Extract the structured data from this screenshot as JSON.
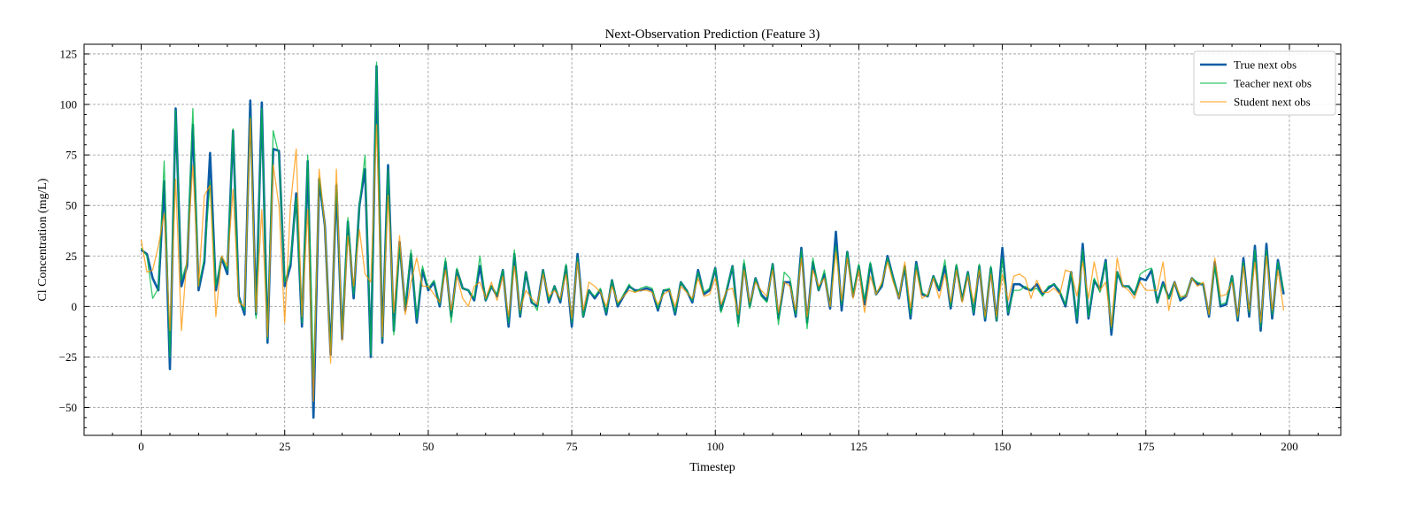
{
  "chart_data": {
    "type": "line",
    "title": "Next-Observation Prediction (Feature 3)",
    "xlabel": "Timestep",
    "ylabel": "Cl Concentration (mg/L)",
    "xlim": [
      -9.95,
      208.95
    ],
    "ylim": [
      -63.8,
      129.8
    ],
    "xticks": [
      0,
      25,
      50,
      75,
      100,
      125,
      150,
      175,
      200
    ],
    "yticks": [
      -50,
      -25,
      0,
      25,
      50,
      75,
      100,
      125
    ],
    "grid": true,
    "legend_position": "top-right",
    "x_start": 0,
    "x_step": 1,
    "series": [
      {
        "name": "True next obs",
        "color": "#0C5DA5",
        "values": [
          28,
          26,
          14,
          8,
          62,
          -31,
          98,
          10,
          20,
          90,
          8,
          22,
          76,
          8,
          24,
          16,
          87,
          5,
          -4,
          102,
          -4,
          101,
          -18,
          78,
          77,
          10,
          20,
          56,
          -10,
          72,
          -55,
          63,
          40,
          -24,
          60,
          -16,
          42,
          4,
          50,
          68,
          -25,
          119,
          -18,
          70,
          -12,
          32,
          -2,
          26,
          -8,
          18,
          8,
          12,
          0,
          22,
          -5,
          18,
          9,
          8,
          3,
          20,
          3,
          10,
          5,
          18,
          -10,
          26,
          -5,
          17,
          2,
          0,
          18,
          2,
          10,
          2,
          20,
          -10,
          26,
          -5,
          8,
          4,
          8,
          -4,
          13,
          0,
          5,
          10,
          8,
          8,
          9,
          8,
          -2,
          8,
          8,
          -4,
          12,
          8,
          2,
          18,
          6,
          8,
          19,
          -2,
          8,
          20,
          -8,
          21,
          0,
          14,
          6,
          3,
          21,
          -6,
          12,
          12,
          -5,
          29,
          -8,
          22,
          8,
          16,
          -1,
          37,
          -2,
          27,
          5,
          20,
          1,
          21,
          6,
          10,
          25,
          14,
          4,
          20,
          -6,
          22,
          6,
          5,
          15,
          8,
          20,
          -1,
          20,
          3,
          17,
          -4,
          20,
          -7,
          19,
          -7,
          29,
          -4,
          11,
          11,
          9,
          8,
          11,
          6,
          9,
          11,
          7,
          0,
          17,
          -8,
          31,
          -6,
          13,
          8,
          23,
          -14,
          17,
          10,
          10,
          6,
          14,
          13,
          18,
          2,
          12,
          4,
          12,
          3,
          5,
          14,
          11,
          11,
          -5,
          22,
          0,
          1,
          15,
          -7,
          24,
          -5,
          30,
          -12,
          31,
          -6,
          23,
          6
        ]
      },
      {
        "name": "Teacher next obs",
        "color": "#00B945",
        "values": [
          29,
          25,
          4,
          9,
          72,
          -25,
          97,
          13,
          22,
          98,
          10,
          24,
          62,
          10,
          25,
          18,
          88,
          4,
          -2,
          94,
          -6,
          98,
          -16,
          87,
          75,
          12,
          22,
          54,
          -8,
          75,
          -35,
          64,
          40,
          -22,
          61,
          -14,
          44,
          6,
          50,
          75,
          -24,
          121,
          -16,
          68,
          -14,
          30,
          0,
          28,
          -6,
          20,
          9,
          13,
          1,
          24,
          -8,
          19,
          9,
          8,
          4,
          25,
          3,
          10,
          6,
          18,
          -8,
          28,
          -4,
          17,
          3,
          -2,
          18,
          3,
          10,
          3,
          21,
          -8,
          24,
          -5,
          8,
          5,
          9,
          -3,
          13,
          1,
          6,
          11,
          7,
          9,
          10,
          9,
          -1,
          8,
          9,
          -3,
          12,
          8,
          3,
          17,
          7,
          9,
          19,
          -3,
          9,
          20,
          -10,
          23,
          -1,
          14,
          5,
          2,
          21,
          -9,
          17,
          14,
          -4,
          28,
          -11,
          24,
          8,
          18,
          0,
          30,
          1,
          27,
          6,
          21,
          3,
          22,
          6,
          11,
          24,
          14,
          5,
          20,
          -4,
          21,
          7,
          5,
          15,
          9,
          23,
          0,
          21,
          3,
          17,
          -3,
          21,
          -6,
          20,
          -7,
          24,
          -3,
          8,
          8,
          10,
          8,
          9,
          5,
          10,
          11,
          8,
          1,
          17,
          -6,
          28,
          -5,
          14,
          7,
          22,
          -11,
          17,
          10,
          10,
          6,
          16,
          18,
          19,
          2,
          11,
          4,
          12,
          4,
          6,
          14,
          12,
          11,
          -4,
          20,
          1,
          2,
          15,
          -6,
          22,
          -3,
          28,
          -10,
          28,
          -4,
          22,
          8
        ]
      },
      {
        "name": "Student next obs",
        "color": "#FF9500",
        "values": [
          33,
          17,
          18,
          30,
          46,
          -12,
          63,
          -12,
          25,
          70,
          10,
          55,
          60,
          -5,
          25,
          20,
          58,
          2,
          0,
          93,
          -3,
          48,
          -15,
          70,
          50,
          -8,
          50,
          78,
          -5,
          48,
          -47,
          68,
          40,
          -28,
          68,
          -17,
          35,
          10,
          38,
          16,
          12,
          90,
          -15,
          55,
          -3,
          35,
          -4,
          12,
          24,
          10,
          10,
          6,
          2,
          18,
          -2,
          15,
          4,
          0,
          10,
          12,
          4,
          12,
          3,
          15,
          -5,
          20,
          -2,
          8,
          4,
          1,
          16,
          5,
          8,
          4,
          16,
          -6,
          22,
          -2,
          12,
          10,
          7,
          0,
          10,
          2,
          5,
          8,
          7,
          8,
          8,
          7,
          1,
          6,
          8,
          0,
          10,
          7,
          4,
          14,
          5,
          6,
          14,
          1,
          8,
          9,
          -4,
          18,
          2,
          12,
          8,
          5,
          18,
          -3,
          12,
          10,
          -2,
          24,
          -5,
          18,
          10,
          14,
          0,
          27,
          3,
          24,
          4,
          18,
          -3,
          15,
          6,
          12,
          22,
          12,
          4,
          22,
          -1,
          18,
          4,
          6,
          14,
          4,
          16,
          2,
          18,
          2,
          15,
          2,
          18,
          -5,
          16,
          -5,
          16,
          3,
          15,
          16,
          14,
          4,
          13,
          7,
          7,
          9,
          6,
          18,
          17,
          5,
          22,
          4,
          22,
          8,
          12,
          -10,
          24,
          10,
          8,
          4,
          12,
          8,
          8,
          8,
          22,
          -2,
          12,
          5,
          5,
          14,
          10,
          12,
          -4,
          24,
          5,
          6,
          12,
          -5,
          20,
          -2,
          22,
          -8,
          25,
          -2,
          18,
          -2
        ]
      }
    ]
  }
}
